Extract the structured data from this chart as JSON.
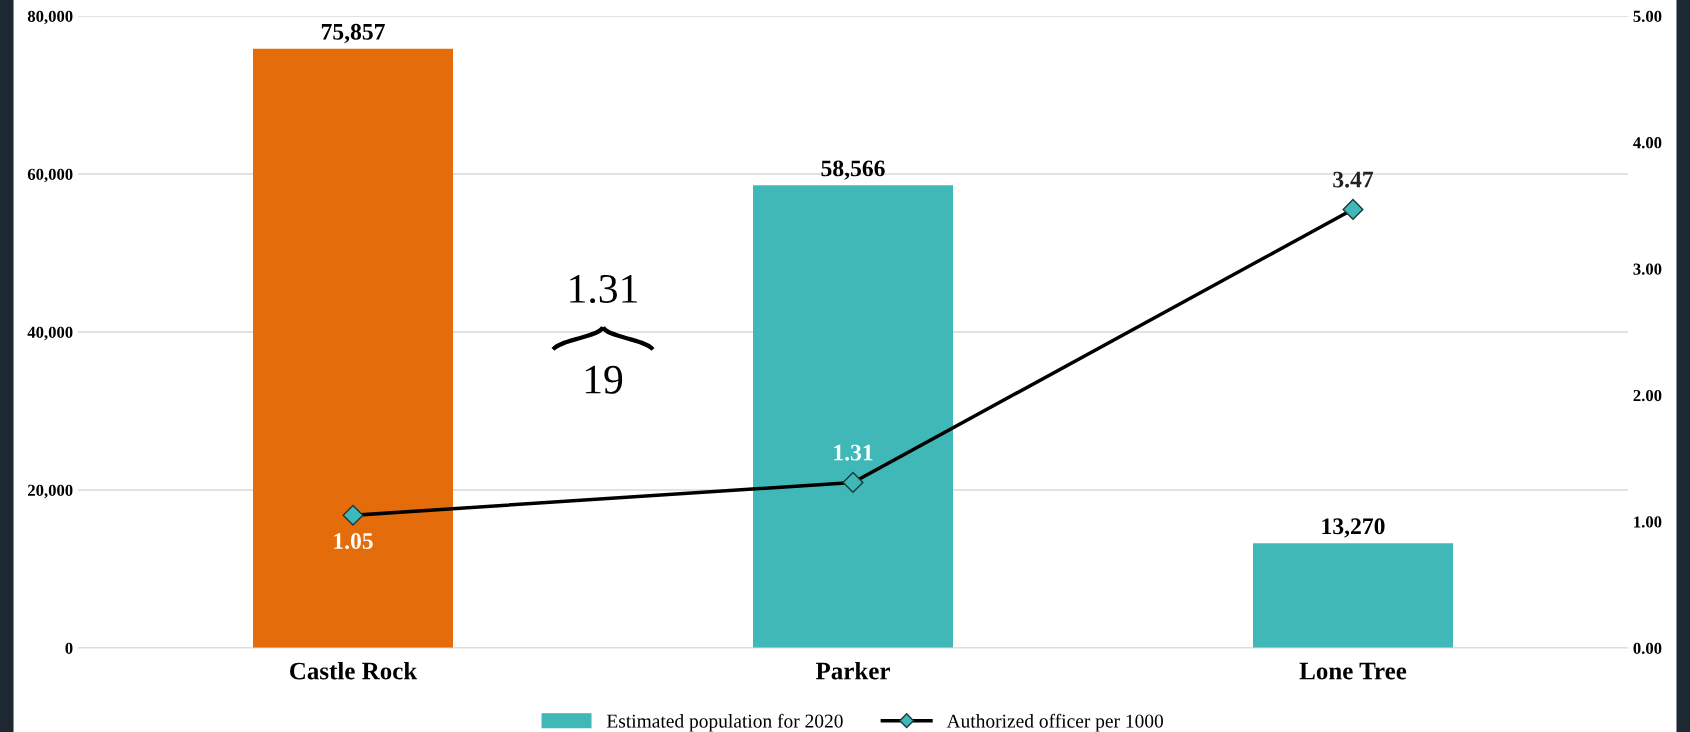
{
  "chart_data": {
    "type": "bar",
    "categories": [
      "Castle Rock",
      "Parker",
      "Lone Tree"
    ],
    "series": [
      {
        "name": "Estimated population for 2020",
        "color": "#40b8b8",
        "colors": [
          "#e46c0a",
          "#40b8b8",
          "#40b8b8"
        ],
        "values": [
          75857,
          58566,
          13270
        ],
        "value_labels": [
          "75,857",
          "58,566",
          "13,270"
        ]
      },
      {
        "name": "Authorized officer per 1000",
        "type": "line",
        "axis": "y2",
        "color": "#000000",
        "colors": [
          "#40b8b8",
          "#40b8b8",
          "#40b8b8"
        ],
        "marker": "diamond",
        "values": [
          1.05,
          1.31,
          3.47
        ],
        "value_labels": [
          "1.05",
          "1.31",
          "3.47"
        ]
      }
    ],
    "ylim": [
      0,
      80000
    ],
    "yticks": [
      {
        "value": 0,
        "label": "0"
      },
      {
        "value": 20000,
        "label": "20,000"
      },
      {
        "value": 40000,
        "label": "40,000"
      },
      {
        "value": 60000,
        "label": "60,000"
      },
      {
        "value": 80000,
        "label": "80,000"
      }
    ],
    "y2lim": [
      0,
      5
    ],
    "y2ticks": [
      {
        "value": 0,
        "label": "0.00"
      },
      {
        "value": 1,
        "label": "1.00"
      },
      {
        "value": 2,
        "label": "2.00"
      },
      {
        "value": 3,
        "label": "3.00"
      },
      {
        "value": 4,
        "label": "4.00"
      },
      {
        "value": 5,
        "label": "5.00"
      }
    ],
    "grid": "y",
    "legend": "bottom",
    "annotations": [
      "1.31",
      "19"
    ]
  }
}
